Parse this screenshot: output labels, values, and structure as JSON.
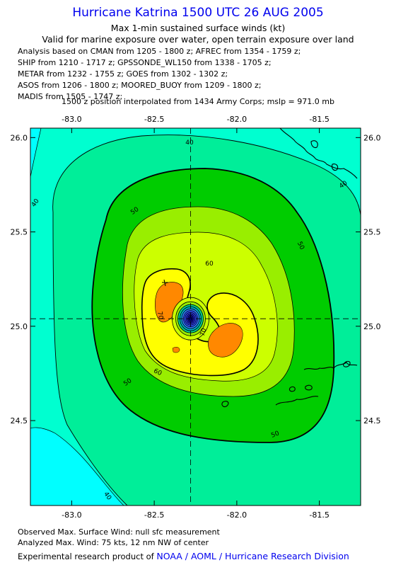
{
  "header": {
    "title": "Hurricane Katrina 1500 UTC 26 AUG 2005",
    "subtitle1": "Max 1-min sustained surface winds (kt)",
    "subtitle2": "Valid for marine exposure over water, open terrain exposure over land"
  },
  "sources": [
    "Analysis based on  CMAN from 1205 - 1800 z;  AFREC from 1354 - 1759 z;",
    "SHIP from 1210 - 1717 z;  GPSSONDE_WL150 from 1338 - 1705 z;",
    "METAR from 1232 - 1755 z;  GOES from 1302 - 1302 z;",
    "ASOS from 1206 - 1800 z;  MOORED_BUOY from 1209 - 1800 z;",
    "MADIS from 1505 - 1747 z;"
  ],
  "interp_note": "1500 z position interpolated from 1434 Army Corps; mslp = 971.0 mb",
  "footer": {
    "observed": "Observed Max. Surface Wind: null sfc measurement",
    "analyzed": "Analyzed Max. Wind: 75 kts, 12 nm NW of center",
    "credit_prefix": "Experimental research product of ",
    "credit_org": "NOAA / AOML / Hurricane Research Division"
  },
  "chart_data": {
    "type": "contour",
    "x_ticks": [
      "-83.0",
      "-82.5",
      "-82.0",
      "-81.5"
    ],
    "x_tick_values": [
      -83.0,
      -82.5,
      -82.0,
      -81.5
    ],
    "y_ticks": [
      "26.0",
      "25.5",
      "25.0",
      "24.5"
    ],
    "y_tick_values": [
      26.0,
      25.5,
      25.0,
      24.5
    ],
    "xlim": [
      -83.25,
      -81.25
    ],
    "ylim": [
      24.05,
      26.05
    ],
    "center": {
      "lon": -82.28,
      "lat": 25.04
    },
    "contour_levels_labeled": [
      40,
      50,
      60,
      70
    ],
    "contour_labels": [
      "40",
      "40",
      "40",
      "40",
      "50",
      "50",
      "50",
      "50",
      "60",
      "60",
      "70",
      "70"
    ],
    "fill_colors": {
      "lt30": "#00ffff",
      "30_40": "#00ffd0",
      "40_50": "#00ee99",
      "50_60": "#00cc00",
      "60_64": "#99ee00",
      "64_70": "#ccff00",
      "70_75": "#ffff00",
      "ge75": "#ff8800",
      "eye": "#2f4fff"
    },
    "max_wind_kt": 75,
    "grid": "dashed center crosshair",
    "land": "Florida Keys islands, black outline"
  }
}
